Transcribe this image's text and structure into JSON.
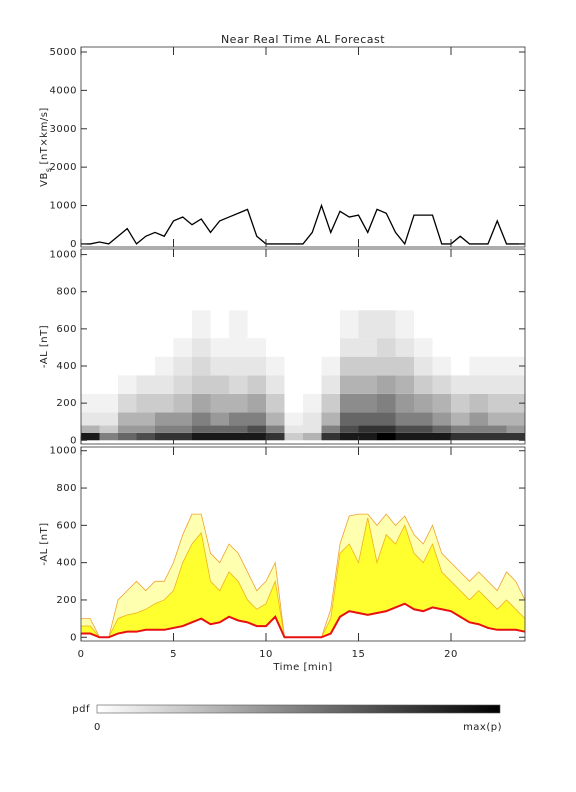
{
  "chart_data": [
    {
      "type": "line",
      "title": "Near Real Time AL Forecast",
      "ylabel": "VB",
      "ylabel_subscript": "s",
      "ylabel_suffix": "[nT×km/s]",
      "x": [
        0,
        0.5,
        1,
        1.5,
        2,
        2.5,
        3,
        3.5,
        4,
        4.5,
        5,
        5.5,
        6,
        6.5,
        7,
        7.5,
        8,
        8.5,
        9,
        9.5,
        10,
        10.5,
        11,
        11.5,
        12,
        12.5,
        13,
        13.5,
        14,
        14.5,
        15,
        15.5,
        16,
        16.5,
        17,
        17.5,
        18,
        18.5,
        19,
        19.5,
        20,
        20.5,
        21,
        21.5,
        22,
        22.5,
        23,
        23.5,
        24
      ],
      "series": [
        {
          "color": "#000000",
          "values": [
            0,
            0,
            50,
            0,
            200,
            400,
            0,
            200,
            300,
            200,
            600,
            700,
            500,
            650,
            300,
            600,
            700,
            800,
            900,
            200,
            0,
            0,
            0,
            0,
            0,
            300,
            1000,
            300,
            850,
            700,
            750,
            300,
            900,
            800,
            300,
            0,
            750,
            750,
            750,
            0,
            0,
            200,
            0,
            0,
            0,
            600,
            0,
            0,
            0
          ]
        }
      ],
      "xlim": [
        0,
        24
      ],
      "ylim": [
        -80,
        5130
      ],
      "yticks": [
        0,
        1000,
        2000,
        3000,
        4000,
        5000
      ]
    },
    {
      "type": "heatmap",
      "ylabel": "-AL [nT]",
      "xbins": [
        0,
        1,
        2,
        3,
        4,
        5,
        6,
        7,
        8,
        9,
        10,
        11,
        12,
        13,
        14,
        15,
        16,
        17,
        18,
        19,
        20,
        21,
        22,
        23,
        24
      ],
      "ybins": [
        0,
        40,
        80,
        150,
        250,
        350,
        450,
        550,
        700
      ],
      "values": [
        [
          0.9,
          0.5,
          0.6,
          0.7,
          0.8,
          0.8,
          0.9,
          0.9,
          0.9,
          0.9,
          0.8,
          0.2,
          0.3,
          0.8,
          0.9,
          0.9,
          1,
          0.9,
          0.9,
          0.9,
          0.8,
          0.8,
          0.8,
          0.8
        ],
        [
          0.3,
          0.2,
          0.4,
          0.4,
          0.5,
          0.5,
          0.6,
          0.6,
          0.6,
          0.7,
          0.5,
          0.1,
          0.1,
          0.5,
          0.7,
          0.8,
          0.8,
          0.7,
          0.7,
          0.6,
          0.5,
          0.5,
          0.5,
          0.4
        ],
        [
          0.1,
          0.1,
          0.3,
          0.3,
          0.4,
          0.4,
          0.5,
          0.4,
          0.5,
          0.5,
          0.3,
          0.05,
          0.1,
          0.3,
          0.6,
          0.6,
          0.6,
          0.5,
          0.5,
          0.4,
          0.3,
          0.4,
          0.3,
          0.3
        ],
        [
          0.05,
          0.05,
          0.15,
          0.2,
          0.2,
          0.25,
          0.35,
          0.3,
          0.3,
          0.35,
          0.2,
          0,
          0.05,
          0.2,
          0.45,
          0.45,
          0.5,
          0.4,
          0.35,
          0.3,
          0.2,
          0.25,
          0.2,
          0.2
        ],
        [
          0,
          0,
          0.05,
          0.1,
          0.1,
          0.15,
          0.2,
          0.2,
          0.15,
          0.2,
          0.1,
          0,
          0,
          0.1,
          0.3,
          0.3,
          0.35,
          0.3,
          0.2,
          0.15,
          0.1,
          0.1,
          0.1,
          0.1
        ],
        [
          0,
          0,
          0,
          0,
          0.05,
          0.1,
          0.15,
          0.1,
          0.1,
          0.1,
          0.05,
          0,
          0,
          0.05,
          0.2,
          0.2,
          0.2,
          0.2,
          0.1,
          0.05,
          0,
          0.05,
          0.05,
          0.05
        ],
        [
          0,
          0,
          0,
          0,
          0,
          0.05,
          0.1,
          0.05,
          0.05,
          0.05,
          0,
          0,
          0,
          0,
          0.1,
          0.1,
          0.15,
          0.1,
          0.05,
          0,
          0,
          0,
          0,
          0
        ],
        [
          0,
          0,
          0,
          0,
          0,
          0,
          0.05,
          0,
          0.05,
          0,
          0,
          0,
          0,
          0,
          0.05,
          0.1,
          0.1,
          0.05,
          0,
          0,
          0,
          0,
          0,
          0
        ]
      ],
      "xlim": [
        0,
        24
      ],
      "ylim": [
        -20,
        1030
      ],
      "yticks": [
        0,
        200,
        400,
        600,
        800,
        1000
      ],
      "colorbar": {
        "label": "pdf",
        "min_label": "0",
        "max_label": "max(p)"
      }
    },
    {
      "type": "band",
      "ylabel": "-AL [nT]",
      "xlabel": "Time [min]",
      "x": [
        0,
        0.5,
        1,
        1.5,
        2,
        2.5,
        3,
        3.5,
        4,
        4.5,
        5,
        5.5,
        6,
        6.5,
        7,
        7.5,
        8,
        8.5,
        9,
        9.5,
        10,
        10.5,
        11,
        11.5,
        12,
        12.5,
        13,
        13.5,
        14,
        14.5,
        15,
        15.5,
        16,
        16.5,
        17,
        17.5,
        18,
        18.5,
        19,
        19.5,
        20,
        20.5,
        21,
        21.5,
        22,
        22.5,
        23,
        23.5,
        24
      ],
      "series": [
        {
          "color": "#f0a030",
          "fill": "#ffffb0",
          "values": [
            100,
            100,
            0,
            0,
            200,
            250,
            300,
            250,
            300,
            300,
            400,
            550,
            660,
            660,
            450,
            400,
            500,
            450,
            350,
            250,
            300,
            400,
            0,
            0,
            0,
            0,
            0,
            150,
            500,
            650,
            660,
            660,
            600,
            660,
            600,
            650,
            550,
            500,
            600,
            450,
            400,
            350,
            300,
            350,
            300,
            250,
            350,
            300,
            200
          ]
        },
        {
          "color": "#f0b020",
          "fill": "#ffff30",
          "values": [
            60,
            60,
            0,
            0,
            100,
            120,
            130,
            150,
            180,
            200,
            250,
            400,
            500,
            560,
            300,
            250,
            350,
            300,
            200,
            150,
            180,
            300,
            0,
            0,
            0,
            0,
            0,
            100,
            450,
            500,
            400,
            640,
            400,
            550,
            500,
            600,
            450,
            400,
            500,
            350,
            300,
            250,
            200,
            250,
            200,
            150,
            200,
            150,
            100
          ]
        },
        {
          "color": "#e81010",
          "values": [
            20,
            20,
            0,
            0,
            20,
            30,
            30,
            40,
            40,
            40,
            50,
            60,
            80,
            100,
            70,
            80,
            110,
            90,
            80,
            60,
            60,
            110,
            0,
            0,
            0,
            0,
            0,
            20,
            110,
            140,
            130,
            120,
            130,
            140,
            160,
            180,
            150,
            140,
            160,
            150,
            140,
            110,
            80,
            70,
            50,
            40,
            40,
            40,
            30
          ]
        }
      ],
      "xlim": [
        0,
        24
      ],
      "ylim": [
        -20,
        1020
      ],
      "yticks": [
        0,
        200,
        400,
        600,
        800,
        1000
      ],
      "xticks": [
        0,
        5,
        10,
        15,
        20
      ]
    }
  ]
}
